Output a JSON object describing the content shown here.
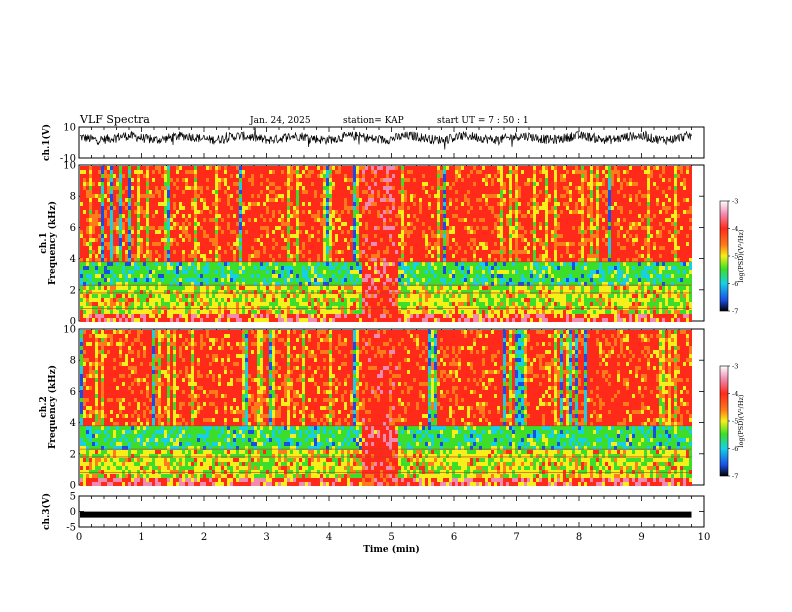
{
  "header": {
    "title": "VLF Spectra",
    "date": "Jan. 24, 2025",
    "station": "station= KAP",
    "start": "start  UT =   7 : 50 : 1"
  },
  "chart_data": [
    {
      "type": "line",
      "panel": "ch1-waveform",
      "ylabel": "ch.1(V)",
      "ylim": [
        -10,
        10
      ],
      "yticks": [
        "10",
        "-10"
      ],
      "x_range_min": [
        0,
        9.8
      ],
      "description_level": "noisy trace centered near 3 V"
    },
    {
      "type": "heatmap",
      "panel": "ch1-spectrogram",
      "ylabel": "ch.1 Frequency (kHz)",
      "ylim": [
        0,
        10
      ],
      "yticks": [
        "0",
        "2",
        "4",
        "6",
        "8",
        "10"
      ],
      "x_range_min": [
        0,
        9.8
      ],
      "colorbar": {
        "label": "log(PSD)(V²/Hz)",
        "range": [
          -7,
          -3
        ],
        "ticks": [
          "-3",
          "-4",
          "-5",
          "-6",
          "-7"
        ]
      }
    },
    {
      "type": "heatmap",
      "panel": "ch2-spectrogram",
      "ylabel": "ch.2 Frequency (kHz)",
      "ylim": [
        0,
        10
      ],
      "yticks": [
        "0",
        "2",
        "4",
        "6",
        "8",
        "10"
      ],
      "x_range_min": [
        0,
        9.8
      ],
      "colorbar": {
        "label": "log(PSD)(V²/Hz)",
        "range": [
          -7,
          -3
        ],
        "ticks": [
          "-3",
          "-4",
          "-5",
          "-6",
          "-7"
        ]
      }
    },
    {
      "type": "line",
      "panel": "ch3-waveform",
      "ylabel": "ch.3(V)",
      "ylim": [
        -5,
        5
      ],
      "yticks": [
        "5",
        "0",
        "-5"
      ],
      "x_range_min": [
        0,
        9.8
      ],
      "description_level": "flat thick band near -1 V"
    }
  ],
  "xaxis": {
    "label": "Time  (min)",
    "range": [
      0,
      10
    ],
    "ticks": [
      "0",
      "1",
      "2",
      "3",
      "4",
      "5",
      "6",
      "7",
      "8",
      "9",
      "10"
    ]
  },
  "colors": {
    "red": "#ff2a1a",
    "orange": "#ff7a1a",
    "yellow": "#f5f01a",
    "green": "#3cde2a",
    "cyan": "#18d0e6",
    "blue": "#1a4de6",
    "magenta": "#f08ab0"
  }
}
